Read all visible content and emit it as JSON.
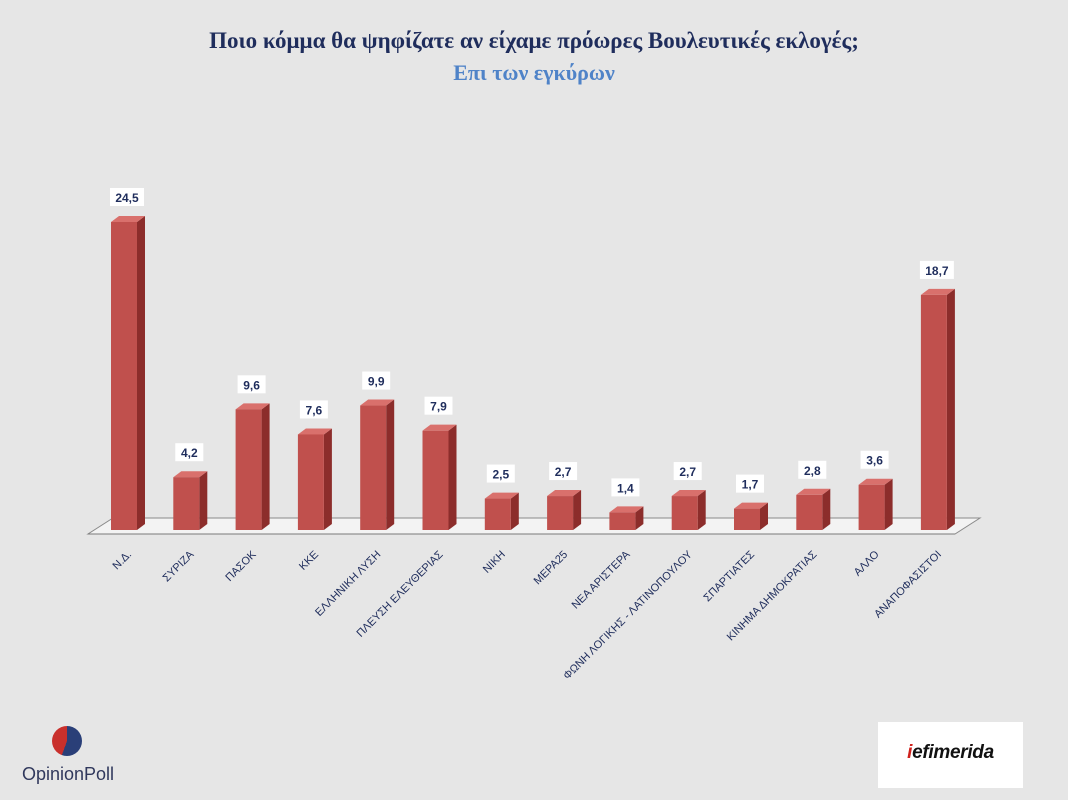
{
  "chart_data": {
    "type": "bar",
    "title": "Ποιο κόμμα θα ψηφίζατε αν είχαμε πρόωρες Βουλευτικές εκλογές;",
    "subtitle": "Επι των εγκύρων",
    "categories": [
      "Ν.Δ.",
      "ΣΥΡΙΖΑ",
      "ΠΑΣΟΚ",
      "ΚΚΕ",
      "ΕΛΛΗΝΙΚΗ ΛΥΣΗ",
      "ΠΛΕΥΣΗ ΕΛΕΥΘΕΡΙΑΣ",
      "ΝΙΚΗ",
      "ΜΕΡΑ25",
      "ΝΕΑ ΑΡΙΣΤΕΡΑ",
      "ΦΩΝΗ ΛΟΓΙΚΗΣ - ΛΑΤΙΝΟΠΟΥΛΟΥ",
      "ΣΠΑΡΤΙΑΤΕΣ",
      "ΚΙΝΗΜΑ ΔΗΜΟΚΡΑΤΙΑΣ",
      "ΑΛΛΟ",
      "ΑΝΑΠΟΦΑΣΙΣΤΟΙ"
    ],
    "values": [
      24.5,
      4.2,
      9.6,
      7.6,
      9.9,
      7.9,
      2.5,
      2.7,
      1.4,
      2.7,
      1.7,
      2.8,
      3.6,
      18.7
    ],
    "value_labels": [
      "24,5",
      "4,2",
      "9,6",
      "7,6",
      "9,9",
      "7,9",
      "2,5",
      "2,7",
      "1,4",
      "2,7",
      "1,7",
      "2,8",
      "3,6",
      "18,7"
    ],
    "xlabel": "",
    "ylabel": "",
    "ylim": [
      0,
      24.5
    ],
    "grid": false,
    "colors": {
      "bar": "#c0504d",
      "bar_side": "#8c2d2b",
      "bar_top": "#d9706c",
      "title": "#1f2d5c",
      "subtitle": "#4f83c8"
    }
  },
  "logos": {
    "opinion_poll": "OpinionPoll",
    "iefimerida_prefix": "i",
    "iefimerida_rest": "efimerida"
  }
}
